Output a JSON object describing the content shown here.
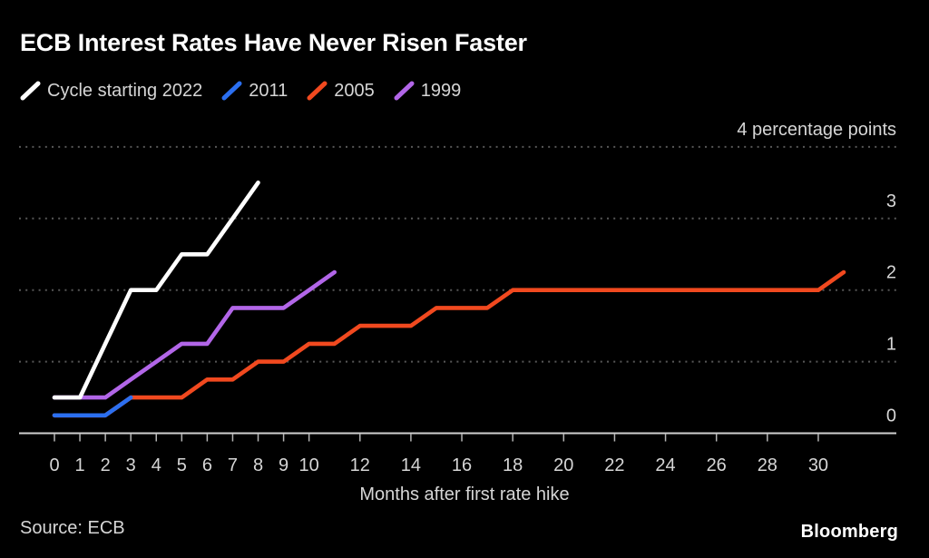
{
  "title": "ECB Interest Rates Have Never Risen Faster",
  "source": "Source: ECB",
  "brand": "Bloomberg",
  "legend": {
    "items": [
      {
        "label": "Cycle starting 2022",
        "color": "#ffffff"
      },
      {
        "label": "2011",
        "color": "#2b6ff0"
      },
      {
        "label": "2005",
        "color": "#f1491f"
      },
      {
        "label": "1999",
        "color": "#b266e8"
      }
    ]
  },
  "chart_data": {
    "type": "line",
    "title": "ECB Interest Rates Have Never Risen Faster",
    "xlabel": "Months after first rate hike",
    "ylabel": "percentage points",
    "xlim": [
      0,
      31
    ],
    "ylim": [
      0,
      4
    ],
    "grid": "horizontal-dotted",
    "legend_position": "top-left",
    "yticks": [
      {
        "value": 0,
        "label": "0"
      },
      {
        "value": 1,
        "label": "1"
      },
      {
        "value": 2,
        "label": "2"
      },
      {
        "value": 3,
        "label": "3"
      },
      {
        "value": 4,
        "label": "4 percentage points"
      }
    ],
    "xticks": [
      0,
      1,
      2,
      3,
      4,
      5,
      6,
      7,
      8,
      9,
      10,
      12,
      14,
      16,
      18,
      20,
      22,
      24,
      26,
      28,
      30
    ],
    "series": [
      {
        "name": "Cycle starting 2022",
        "color": "#ffffff",
        "points": [
          [
            0,
            0.5
          ],
          [
            1,
            0.5
          ],
          [
            2,
            1.25
          ],
          [
            3,
            2.0
          ],
          [
            4,
            2.0
          ],
          [
            5,
            2.5
          ],
          [
            6,
            2.5
          ],
          [
            7,
            3.0
          ],
          [
            8,
            3.5
          ]
        ]
      },
      {
        "name": "2011",
        "color": "#2b6ff0",
        "points": [
          [
            0,
            0.25
          ],
          [
            1,
            0.25
          ],
          [
            2,
            0.25
          ],
          [
            3,
            0.5
          ]
        ]
      },
      {
        "name": "2005",
        "color": "#f1491f",
        "points": [
          [
            0,
            0.25
          ],
          [
            1,
            0.25
          ],
          [
            2,
            0.25
          ],
          [
            3,
            0.5
          ],
          [
            4,
            0.5
          ],
          [
            5,
            0.5
          ],
          [
            6,
            0.75
          ],
          [
            7,
            0.75
          ],
          [
            8,
            1.0
          ],
          [
            9,
            1.0
          ],
          [
            10,
            1.25
          ],
          [
            11,
            1.25
          ],
          [
            12,
            1.5
          ],
          [
            13,
            1.5
          ],
          [
            14,
            1.5
          ],
          [
            15,
            1.75
          ],
          [
            16,
            1.75
          ],
          [
            17,
            1.75
          ],
          [
            18,
            2.0
          ],
          [
            19,
            2.0
          ],
          [
            20,
            2.0
          ],
          [
            21,
            2.0
          ],
          [
            22,
            2.0
          ],
          [
            23,
            2.0
          ],
          [
            24,
            2.0
          ],
          [
            25,
            2.0
          ],
          [
            26,
            2.0
          ],
          [
            27,
            2.0
          ],
          [
            28,
            2.0
          ],
          [
            29,
            2.0
          ],
          [
            30,
            2.0
          ],
          [
            31,
            2.25
          ]
        ]
      },
      {
        "name": "1999",
        "color": "#b266e8",
        "points": [
          [
            0,
            0.5
          ],
          [
            1,
            0.5
          ],
          [
            2,
            0.5
          ],
          [
            3,
            0.75
          ],
          [
            4,
            1.0
          ],
          [
            5,
            1.25
          ],
          [
            6,
            1.25
          ],
          [
            7,
            1.75
          ],
          [
            8,
            1.75
          ],
          [
            9,
            1.75
          ],
          [
            10,
            2.0
          ],
          [
            11,
            2.25
          ]
        ]
      }
    ]
  }
}
